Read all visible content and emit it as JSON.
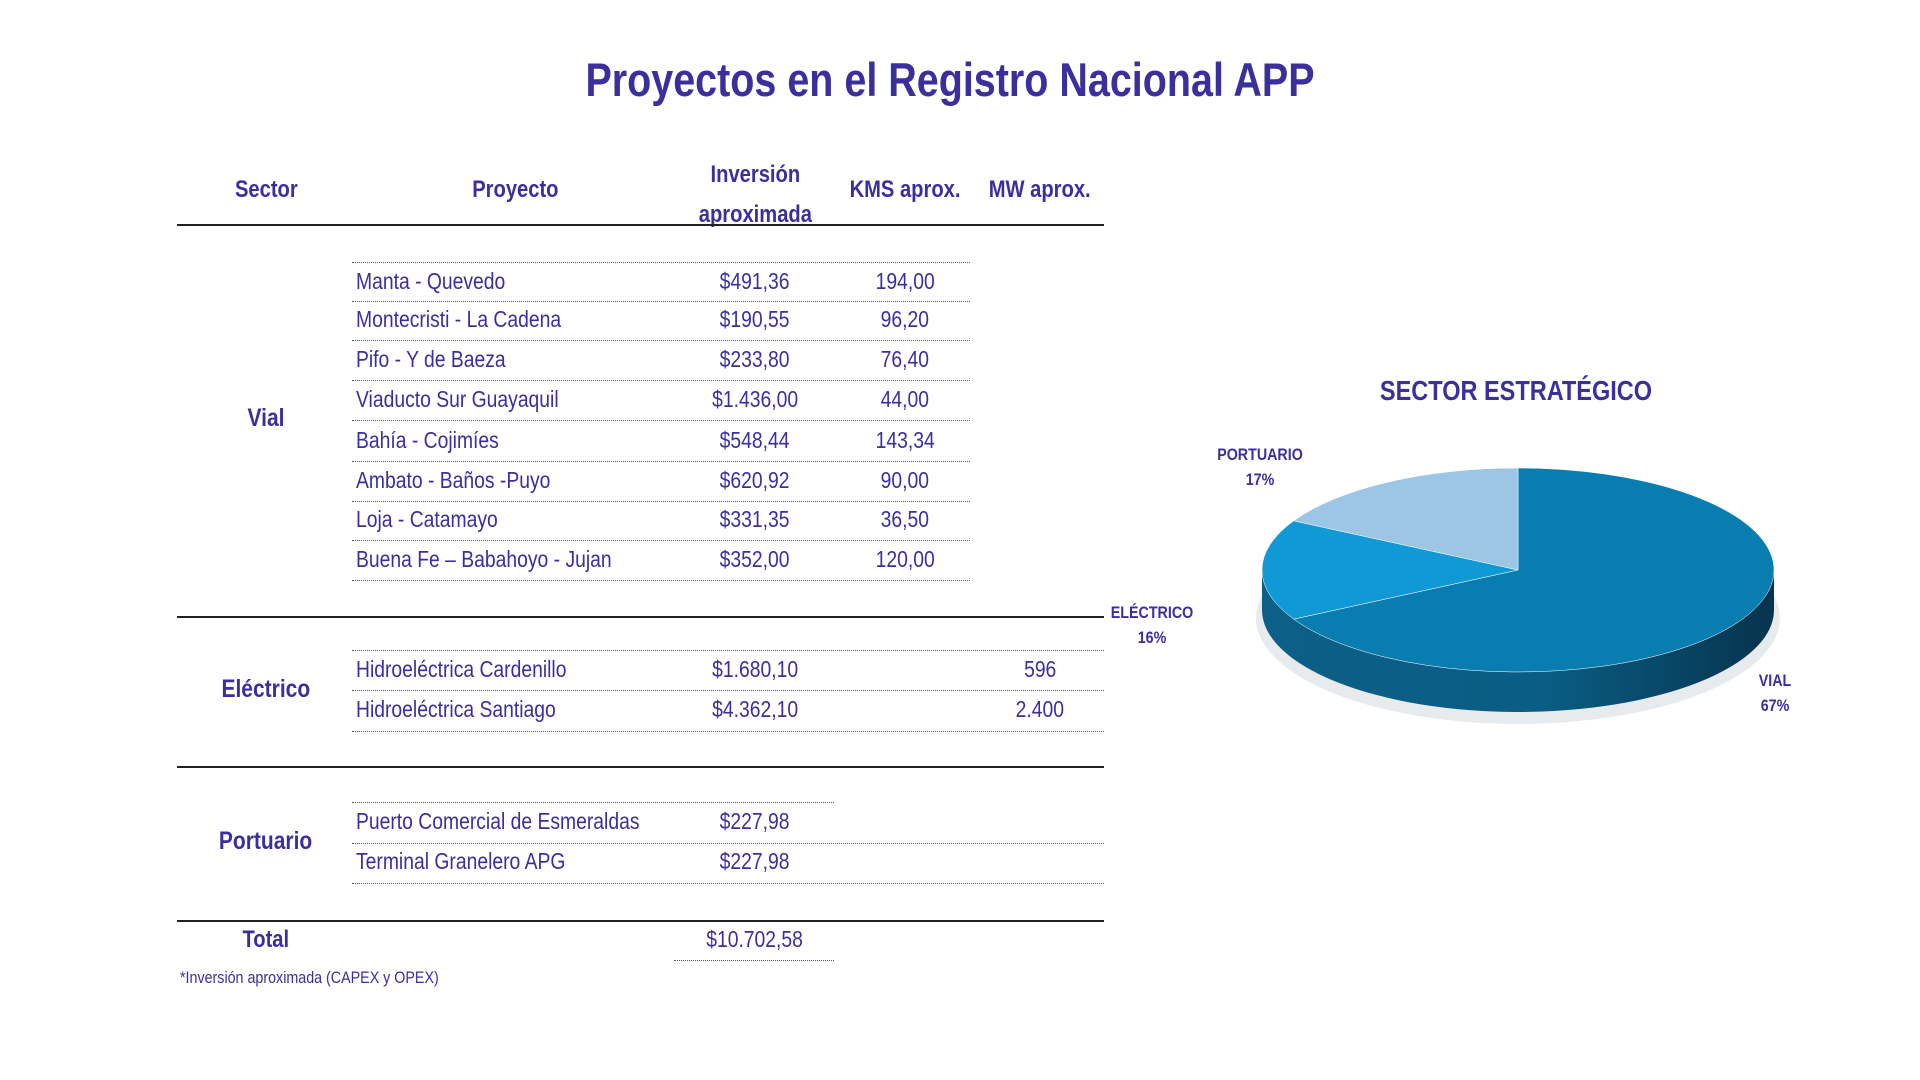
{
  "title": "Proyectos en el Registro Nacional APP",
  "table": {
    "headers": {
      "sector": "Sector",
      "proyecto": "Proyecto",
      "inversion_line1": "Inversión",
      "inversion_line2": "aproximada",
      "kms": "KMS aprox.",
      "mw": "MW aprox."
    },
    "groups": [
      {
        "sector": "Vial",
        "rows": [
          {
            "proyecto": "Manta - Quevedo",
            "inversion": "$491,36",
            "kms": "194,00",
            "mw": ""
          },
          {
            "proyecto": "Montecristi - La Cadena",
            "inversion": "$190,55",
            "kms": "96,20",
            "mw": ""
          },
          {
            "proyecto": "Pifo - Y de Baeza",
            "inversion": "$233,80",
            "kms": "76,40",
            "mw": ""
          },
          {
            "proyecto": "Viaducto Sur Guayaquil",
            "inversion": "$1.436,00",
            "kms": "44,00",
            "mw": ""
          },
          {
            "proyecto": "Bahía - Cojimíes",
            "inversion": "$548,44",
            "kms": "143,34",
            "mw": ""
          },
          {
            "proyecto": "Ambato - Baños -Puyo",
            "inversion": "$620,92",
            "kms": "90,00",
            "mw": ""
          },
          {
            "proyecto": "Loja - Catamayo",
            "inversion": "$331,35",
            "kms": "36,50",
            "mw": ""
          },
          {
            "proyecto": "Buena Fe – Babahoyo - Jujan",
            "inversion": "$352,00",
            "kms": "120,00",
            "mw": ""
          }
        ]
      },
      {
        "sector": "Eléctrico",
        "rows": [
          {
            "proyecto": "Hidroeléctrica Cardenillo",
            "inversion": "$1.680,10",
            "kms": "",
            "mw": "596"
          },
          {
            "proyecto": "Hidroeléctrica Santiago",
            "inversion": "$4.362,10",
            "kms": "",
            "mw": "2.400"
          }
        ]
      },
      {
        "sector": "Portuario",
        "rows": [
          {
            "proyecto": "Puerto Comercial de Esmeraldas",
            "inversion": "$227,98",
            "kms": "",
            "mw": ""
          },
          {
            "proyecto": "Terminal Granelero APG",
            "inversion": "$227,98",
            "kms": "",
            "mw": ""
          }
        ]
      }
    ],
    "total_label": "Total",
    "total_value": "$10.702,58"
  },
  "footnote": "*Inversión aproximada (CAPEX y OPEX)",
  "chart_data": {
    "type": "pie",
    "title": "SECTOR ESTRATÉGICO",
    "slices": [
      {
        "name": "VIAL",
        "value": 67,
        "label": "67%",
        "color": "#0a7db0"
      },
      {
        "name": "ELÉCTRICO",
        "value": 16,
        "label": "16%",
        "color": "#1199d6"
      },
      {
        "name": "PORTUARIO",
        "value": 17,
        "label": "17%",
        "color": "#9cc6e3"
      }
    ],
    "style": "3d"
  }
}
